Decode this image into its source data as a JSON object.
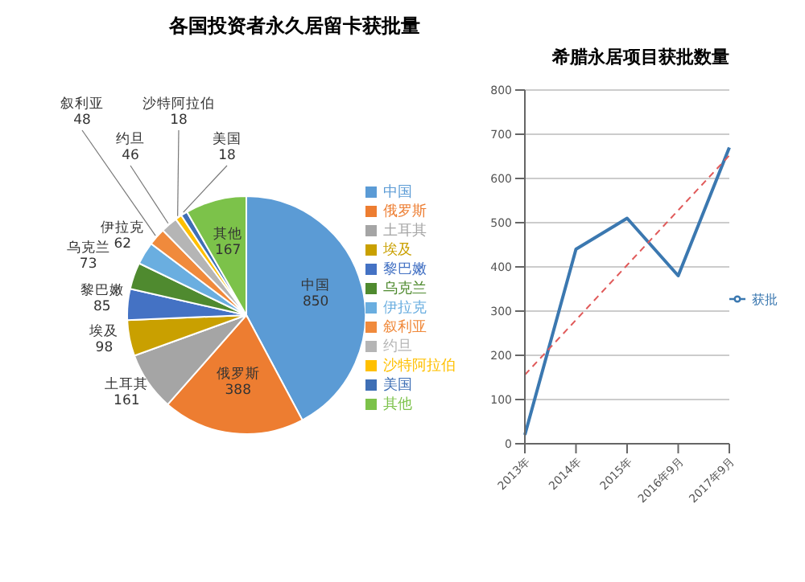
{
  "chart_data": [
    {
      "type": "pie",
      "title": "各国投资者永久居留卡获批量",
      "categories": [
        "中国",
        "俄罗斯",
        "土耳其",
        "埃及",
        "黎巴嫩",
        "乌克兰",
        "伊拉克",
        "叙利亚",
        "约旦",
        "沙特阿拉伯",
        "美国",
        "其他"
      ],
      "values": [
        850,
        388,
        161,
        98,
        85,
        73,
        62,
        48,
        46,
        18,
        18,
        167
      ],
      "colors": [
        "#5b9bd5",
        "#ed7d31",
        "#a5a5a5",
        "#c9a000",
        "#4472c4",
        "#4f8a2f",
        "#6aaee0",
        "#f08a3c",
        "#b5b5b5",
        "#ffc000",
        "#3f6fb5",
        "#7cc24a"
      ],
      "data_labels": true,
      "legend": "right"
    },
    {
      "type": "line",
      "title": "希腊永居项目获批数量",
      "categories": [
        "2013年",
        "2014年",
        "2015年",
        "2016年9月",
        "2017年9月"
      ],
      "series": [
        {
          "name": "获批",
          "color": "#3b78b0",
          "values": [
            20,
            440,
            510,
            380,
            670
          ]
        },
        {
          "color": "#e05a5a",
          "line_style": "dashed",
          "values": [
            156,
            280,
            404,
            528,
            652
          ]
        }
      ],
      "ylim": [
        0,
        800
      ],
      "yticks": [
        0,
        100,
        200,
        300,
        400,
        500,
        600,
        700,
        800
      ],
      "grid": "y",
      "legend": "right",
      "marker": "none",
      "line_style": "solid"
    }
  ]
}
